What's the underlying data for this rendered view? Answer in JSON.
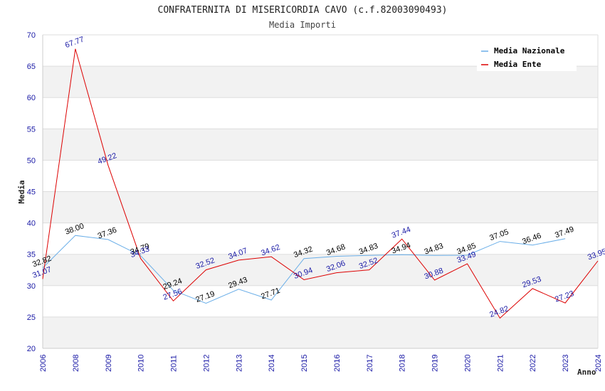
{
  "chart_data": {
    "type": "line",
    "title": "CONFRATERNITA DI MISERICORDIA CAVO (c.f.82003090493)",
    "subtitle": "Media Importi",
    "xlabel": "Anno",
    "ylabel": "Media",
    "ylim": [
      20,
      70
    ],
    "yticks": [
      20,
      25,
      30,
      35,
      40,
      45,
      50,
      55,
      60,
      65,
      70
    ],
    "categories": [
      "2006",
      "2008",
      "2009",
      "2010",
      "2011",
      "2012",
      "2013",
      "2014",
      "2015",
      "2016",
      "2017",
      "2018",
      "2019",
      "2020",
      "2021",
      "2022",
      "2023",
      "2024"
    ],
    "grid": true,
    "legend_position": "top-right",
    "series": [
      {
        "name": "Media Nazionale",
        "color": "#6aaee8",
        "label_color": "#000000",
        "values": [
          32.82,
          38.0,
          37.36,
          34.79,
          29.24,
          27.19,
          29.43,
          27.71,
          34.32,
          34.68,
          34.83,
          34.94,
          34.83,
          34.85,
          37.05,
          36.46,
          37.49,
          null
        ],
        "labels": [
          "32.82",
          "38.00",
          "37.36",
          "34.79",
          "29.24",
          "27.19",
          "29.43",
          "27.71",
          "34.32",
          "34.68",
          "34.83",
          "34.94",
          "34.83",
          "34.85",
          "37.05",
          "36.46",
          "37.49",
          null
        ]
      },
      {
        "name": "Media Ente",
        "color": "#dd0000",
        "label_color": "#1a1aa6",
        "values": [
          31.07,
          67.77,
          49.22,
          34.33,
          27.56,
          32.52,
          34.07,
          34.62,
          30.94,
          32.06,
          32.52,
          37.44,
          30.88,
          33.49,
          24.82,
          29.53,
          27.23,
          33.95
        ],
        "labels": [
          "31.07",
          "67.77",
          "49.22",
          "34.33",
          "27.56",
          "32.52",
          "34.07",
          "34.62",
          "30.94",
          "32.06",
          "32.52",
          "37.44",
          "30.88",
          "33.49",
          "24.82",
          "29.53",
          "27.23",
          "33.95"
        ]
      }
    ]
  }
}
